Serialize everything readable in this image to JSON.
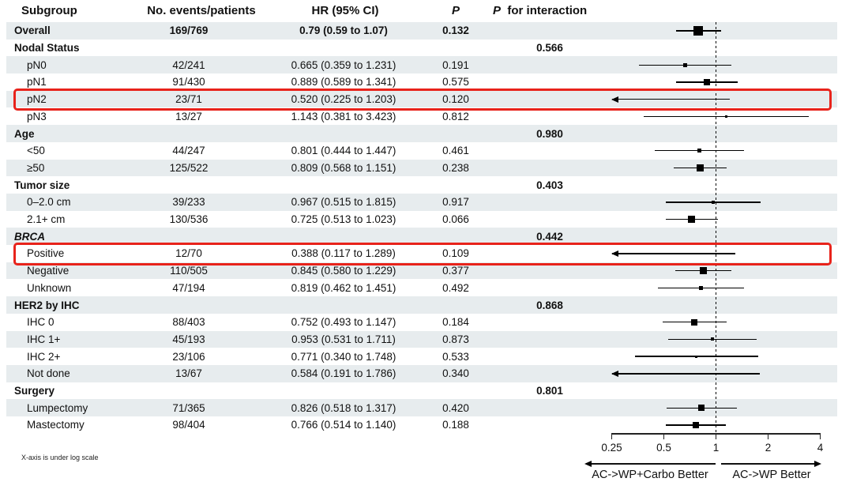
{
  "header": {
    "subgroup": "Subgroup",
    "events": "No. events/patients",
    "hr": "HR (95% CI)",
    "p": "P",
    "p_int_p": "P",
    "p_int_rest": "for interaction"
  },
  "footnote": "X-axis is under log scale",
  "colors": {
    "stripe": "#e7ecee",
    "highlight_red": "#e8231b",
    "marker_black": "#000000"
  },
  "axis": {
    "scale": "log",
    "range": [
      0.25,
      4
    ],
    "ticks": [
      0.25,
      0.5,
      1,
      2,
      4
    ],
    "tick_labels": [
      "0.25",
      "0.5",
      "1",
      "2",
      "4"
    ],
    "reference_line": 1,
    "left_label": "AC->WP+Carbo Better",
    "right_label": "AC->WP Better"
  },
  "chart_data": {
    "type": "forest",
    "x_scale": "log",
    "xlim": [
      0.25,
      4
    ],
    "rows": [
      {
        "label": "Overall",
        "level": "overall",
        "events": "169/769",
        "hr_ci": "0.79 (0.59 to 1.07)",
        "p": "0.132",
        "p_int": "",
        "hr": 0.79,
        "lo": 0.59,
        "hi": 1.07,
        "marker": 12,
        "clip_low": false,
        "highlight": false
      },
      {
        "label": "Nodal Status",
        "level": "group",
        "events": "",
        "hr_ci": "",
        "p": "",
        "p_int": "0.566",
        "hr": null,
        "lo": null,
        "hi": null,
        "marker": 0,
        "clip_low": false,
        "highlight": false
      },
      {
        "label": "pN0",
        "level": "item",
        "events": "42/241",
        "hr_ci": "0.665 (0.359 to 1.231)",
        "p": "0.191",
        "p_int": "",
        "hr": 0.665,
        "lo": 0.359,
        "hi": 1.231,
        "marker": 5,
        "clip_low": false,
        "highlight": false
      },
      {
        "label": "pN1",
        "level": "item",
        "events": "91/430",
        "hr_ci": "0.889 (0.589 to 1.341)",
        "p": "0.575",
        "p_int": "",
        "hr": 0.889,
        "lo": 0.589,
        "hi": 1.341,
        "marker": 8,
        "clip_low": false,
        "highlight": false
      },
      {
        "label": "pN2",
        "level": "item",
        "events": "23/71",
        "hr_ci": "0.520 (0.225 to 1.203)",
        "p": "0.120",
        "p_int": "",
        "hr": 0.52,
        "lo": 0.225,
        "hi": 1.203,
        "marker": 0,
        "clip_low": true,
        "highlight": true
      },
      {
        "label": "pN3",
        "level": "item",
        "events": "13/27",
        "hr_ci": "1.143 (0.381 to 3.423)",
        "p": "0.812",
        "p_int": "",
        "hr": 1.143,
        "lo": 0.381,
        "hi": 3.423,
        "marker": 3,
        "clip_low": false,
        "highlight": false
      },
      {
        "label": "Age",
        "level": "group",
        "events": "",
        "hr_ci": "",
        "p": "",
        "p_int": "0.980",
        "hr": null,
        "lo": null,
        "hi": null,
        "marker": 0,
        "clip_low": false,
        "highlight": false
      },
      {
        "label": "<50",
        "level": "item",
        "events": "44/247",
        "hr_ci": "0.801 (0.444 to 1.447)",
        "p": "0.461",
        "p_int": "",
        "hr": 0.801,
        "lo": 0.444,
        "hi": 1.447,
        "marker": 5,
        "clip_low": false,
        "highlight": false
      },
      {
        "label": "≥50",
        "level": "item",
        "events": "125/522",
        "hr_ci": "0.809 (0.568 to 1.151)",
        "p": "0.238",
        "p_int": "",
        "hr": 0.809,
        "lo": 0.568,
        "hi": 1.151,
        "marker": 9,
        "clip_low": false,
        "highlight": false
      },
      {
        "label": "Tumor size",
        "level": "group",
        "events": "",
        "hr_ci": "",
        "p": "",
        "p_int": "0.403",
        "hr": null,
        "lo": null,
        "hi": null,
        "marker": 0,
        "clip_low": false,
        "highlight": false
      },
      {
        "label": "0–2.0 cm",
        "level": "item",
        "events": "39/233",
        "hr_ci": "0.967 (0.515 to 1.815)",
        "p": "0.917",
        "p_int": "",
        "hr": 0.967,
        "lo": 0.515,
        "hi": 1.815,
        "marker": 4,
        "clip_low": false,
        "highlight": false
      },
      {
        "label": "2.1+ cm",
        "level": "item",
        "events": "130/536",
        "hr_ci": "0.725 (0.513 to 1.023)",
        "p": "0.066",
        "p_int": "",
        "hr": 0.725,
        "lo": 0.513,
        "hi": 1.023,
        "marker": 9,
        "clip_low": false,
        "highlight": false
      },
      {
        "label": "BRCA",
        "level": "group",
        "italic": true,
        "events": "",
        "hr_ci": "",
        "p": "",
        "p_int": "0.442",
        "hr": null,
        "lo": null,
        "hi": null,
        "marker": 0,
        "clip_low": false,
        "highlight": false
      },
      {
        "label": "Positive",
        "level": "item",
        "events": "12/70",
        "hr_ci": "0.388 (0.117 to 1.289)",
        "p": "0.109",
        "p_int": "",
        "hr": 0.388,
        "lo": 0.117,
        "hi": 1.289,
        "marker": 0,
        "clip_low": true,
        "highlight": true
      },
      {
        "label": "Negative",
        "level": "item",
        "events": "110/505",
        "hr_ci": "0.845 (0.580 to 1.229)",
        "p": "0.377",
        "p_int": "",
        "hr": 0.845,
        "lo": 0.58,
        "hi": 1.229,
        "marker": 9,
        "clip_low": false,
        "highlight": false
      },
      {
        "label": "Unknown",
        "level": "item",
        "events": "47/194",
        "hr_ci": "0.819 (0.462 to 1.451)",
        "p": "0.492",
        "p_int": "",
        "hr": 0.819,
        "lo": 0.462,
        "hi": 1.451,
        "marker": 5,
        "clip_low": false,
        "highlight": false
      },
      {
        "label": "HER2 by IHC",
        "level": "group",
        "events": "",
        "hr_ci": "",
        "p": "",
        "p_int": "0.868",
        "hr": null,
        "lo": null,
        "hi": null,
        "marker": 0,
        "clip_low": false,
        "highlight": false
      },
      {
        "label": "IHC 0",
        "level": "item",
        "events": "88/403",
        "hr_ci": "0.752 (0.493 to 1.147)",
        "p": "0.184",
        "p_int": "",
        "hr": 0.752,
        "lo": 0.493,
        "hi": 1.147,
        "marker": 8,
        "clip_low": false,
        "highlight": false
      },
      {
        "label": "IHC 1+",
        "level": "item",
        "events": "45/193",
        "hr_ci": "0.953 (0.531 to 1.711)",
        "p": "0.873",
        "p_int": "",
        "hr": 0.953,
        "lo": 0.531,
        "hi": 1.711,
        "marker": 4,
        "clip_low": false,
        "highlight": false
      },
      {
        "label": "IHC 2+",
        "level": "item",
        "events": "23/106",
        "hr_ci": "0.771 (0.340 to 1.748)",
        "p": "0.533",
        "p_int": "",
        "hr": 0.771,
        "lo": 0.34,
        "hi": 1.748,
        "marker": 3,
        "clip_low": false,
        "highlight": false
      },
      {
        "label": "Not done",
        "level": "item",
        "events": "13/67",
        "hr_ci": "0.584 (0.191 to 1.786)",
        "p": "0.340",
        "p_int": "",
        "hr": 0.584,
        "lo": 0.191,
        "hi": 1.786,
        "marker": 0,
        "clip_low": true,
        "highlight": false
      },
      {
        "label": "Surgery",
        "level": "group",
        "events": "",
        "hr_ci": "",
        "p": "",
        "p_int": "0.801",
        "hr": null,
        "lo": null,
        "hi": null,
        "marker": 0,
        "clip_low": false,
        "highlight": false
      },
      {
        "label": "Lumpectomy",
        "level": "item",
        "events": "71/365",
        "hr_ci": "0.826 (0.518 to 1.317)",
        "p": "0.420",
        "p_int": "",
        "hr": 0.826,
        "lo": 0.518,
        "hi": 1.317,
        "marker": 8,
        "clip_low": false,
        "highlight": false
      },
      {
        "label": "Mastectomy",
        "level": "item",
        "events": "98/404",
        "hr_ci": "0.766 (0.514 to 1.140)",
        "p": "0.188",
        "p_int": "",
        "hr": 0.766,
        "lo": 0.514,
        "hi": 1.14,
        "marker": 8,
        "clip_low": false,
        "highlight": false
      }
    ]
  }
}
